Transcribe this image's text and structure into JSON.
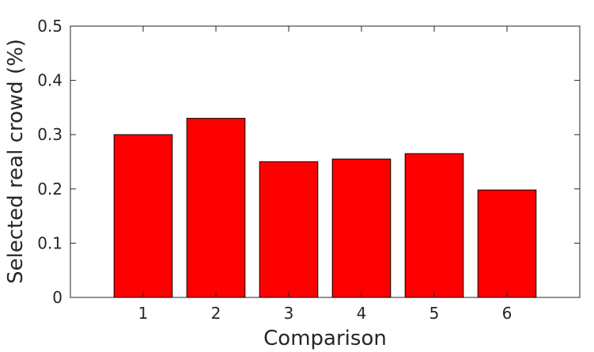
{
  "chart_data": {
    "type": "bar",
    "title": "",
    "xlabel": "Comparison",
    "ylabel": "Selected real crowd (%)",
    "categories": [
      "1",
      "2",
      "3",
      "4",
      "5",
      "6"
    ],
    "values": [
      0.3,
      0.33,
      0.25,
      0.255,
      0.265,
      0.198
    ],
    "xlim": [
      0,
      7
    ],
    "ylim": [
      0,
      0.5
    ],
    "yticks": [
      0,
      0.1,
      0.2,
      0.3,
      0.4,
      0.5
    ],
    "ytick_labels": [
      "0",
      "0.1",
      "0.2",
      "0.3",
      "0.4",
      "0.5"
    ],
    "grid": false,
    "legend": "none",
    "bar_color": "#ff0000",
    "edge_color": "#000000"
  }
}
